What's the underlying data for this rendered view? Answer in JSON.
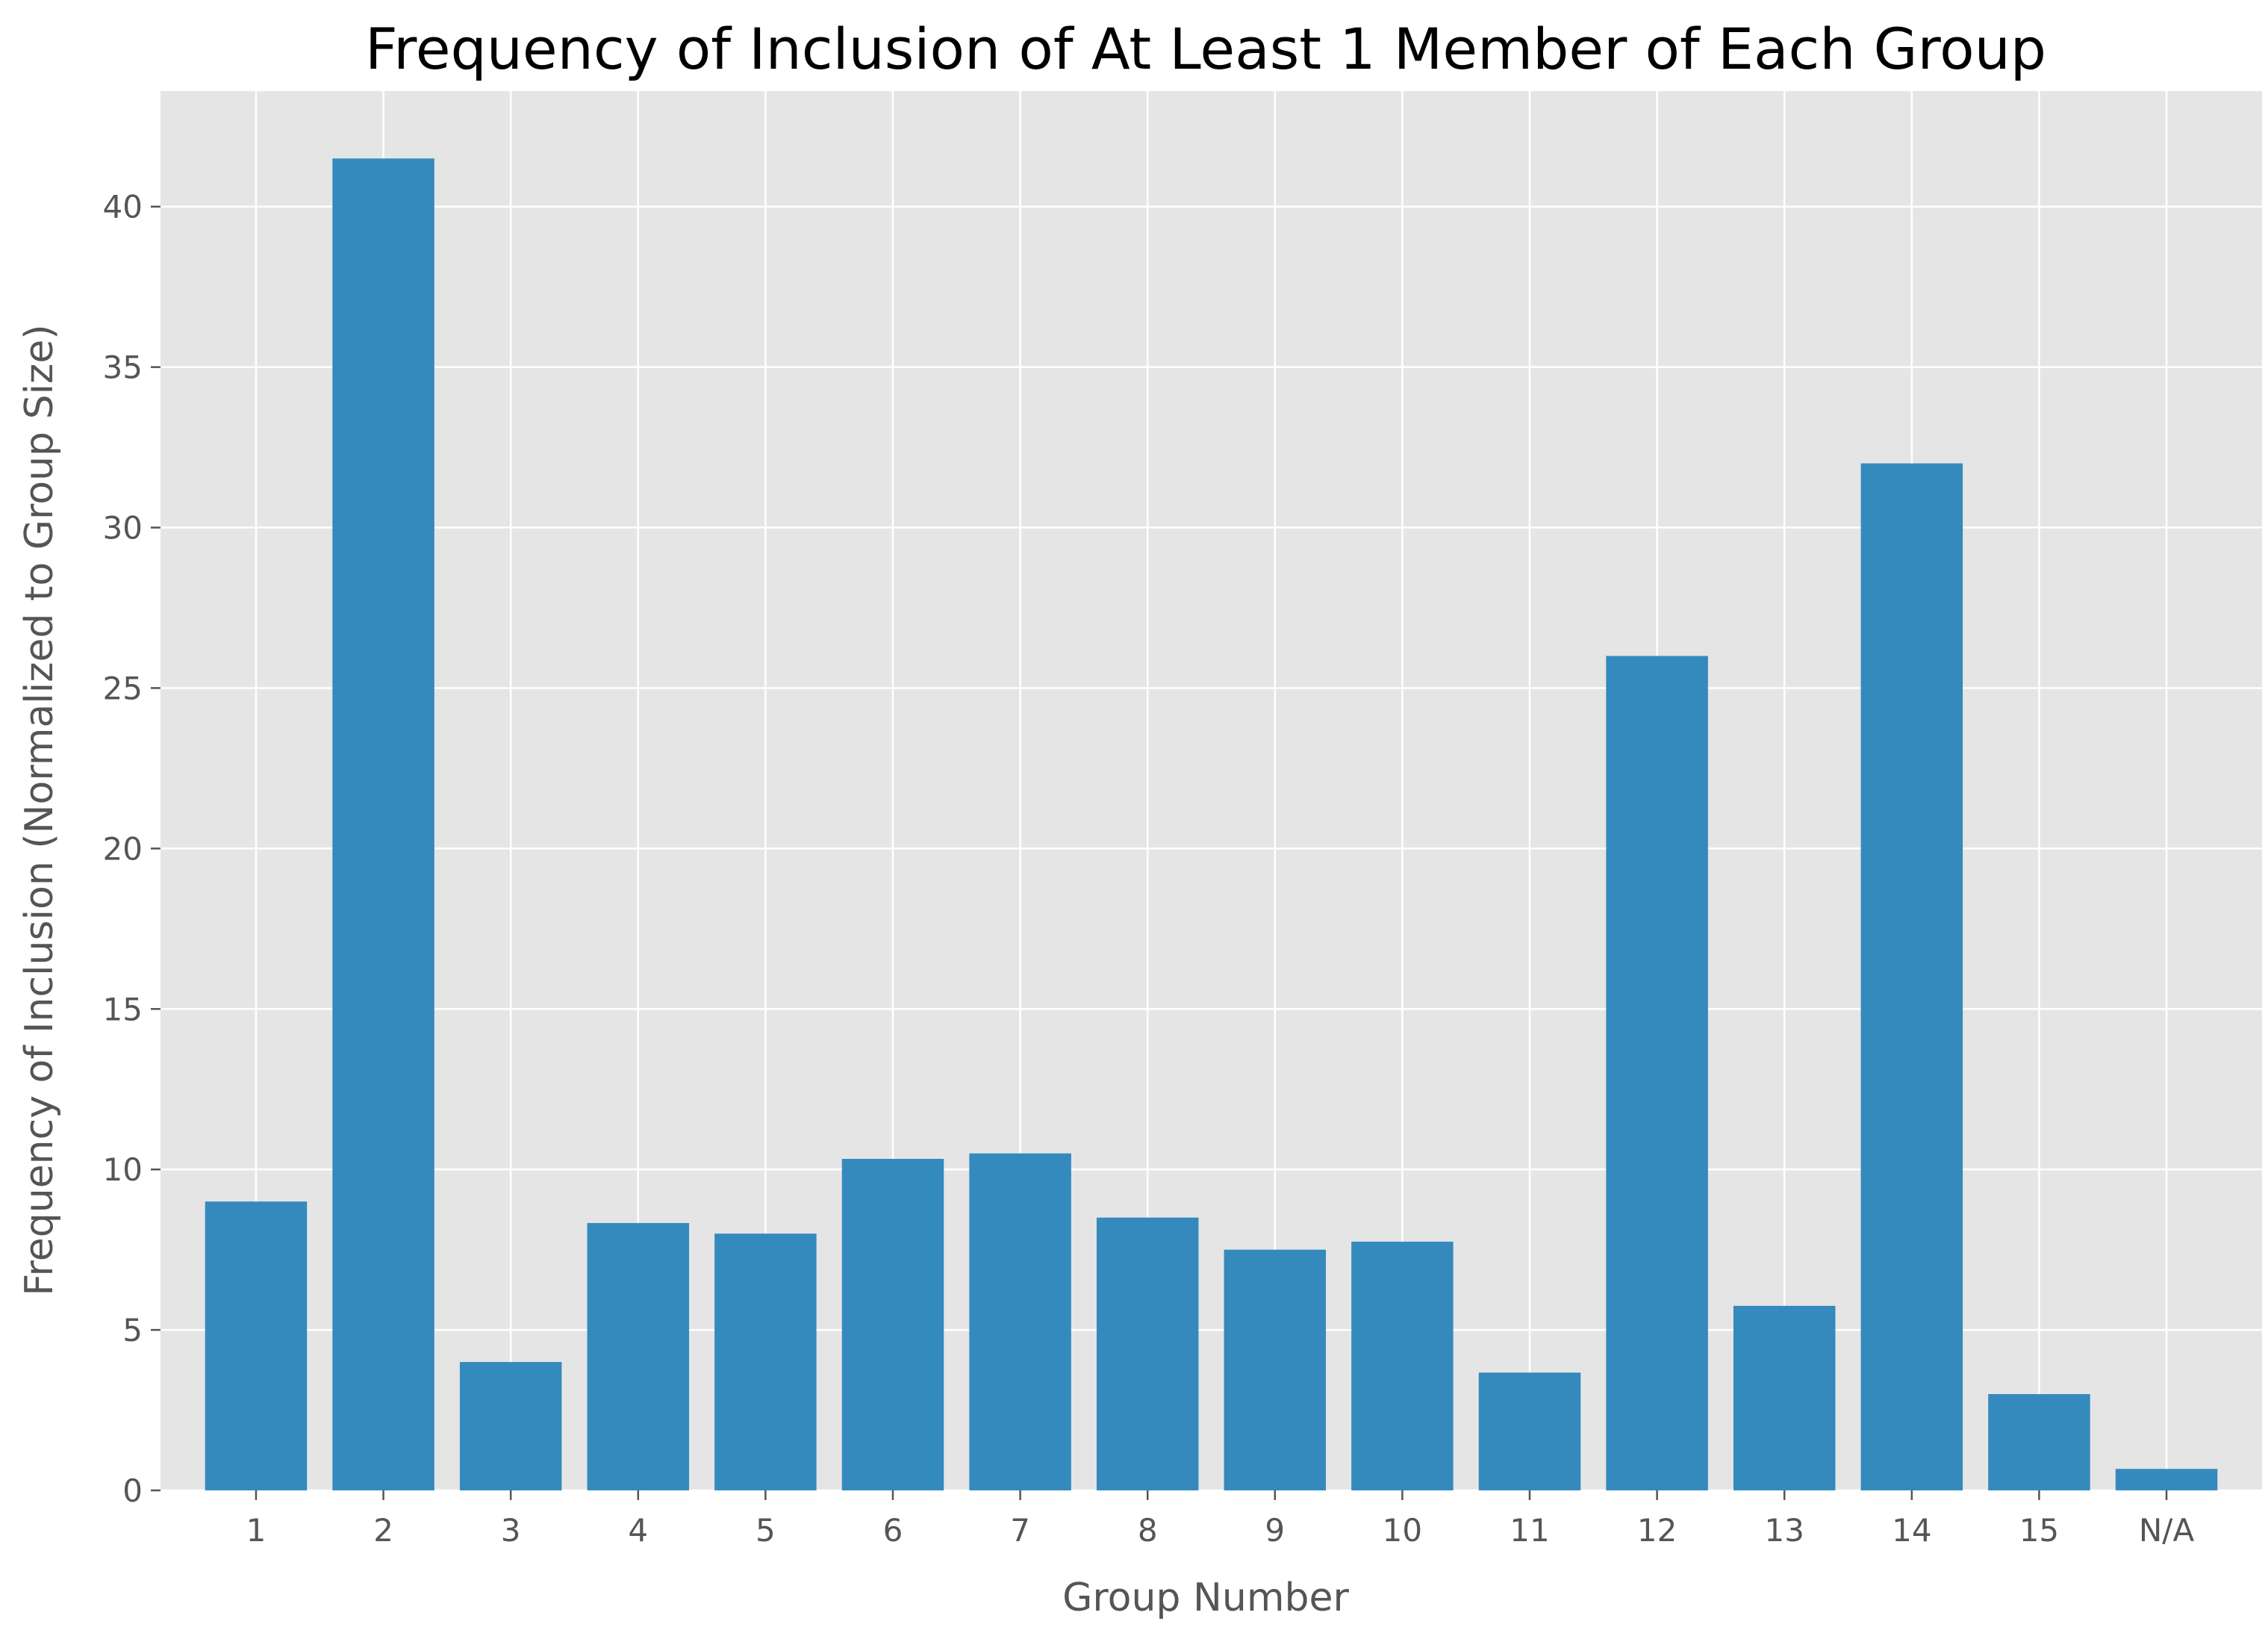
{
  "chart_data": {
    "type": "bar",
    "title": "Frequency of Inclusion of At Least 1 Member of Each Group",
    "xlabel": "Group Number",
    "ylabel": "Frequency of Inclusion (Normalized to Group Size)",
    "categories": [
      "1",
      "2",
      "3",
      "4",
      "5",
      "6",
      "7",
      "8",
      "9",
      "10",
      "11",
      "12",
      "13",
      "14",
      "15",
      "N/A"
    ],
    "values": [
      9.0,
      41.5,
      4.0,
      8.33,
      8.0,
      10.33,
      10.5,
      8.5,
      7.5,
      7.75,
      3.67,
      26.0,
      5.75,
      32.0,
      3.0,
      0.67
    ],
    "ylim": [
      0,
      43.6
    ],
    "yticks": [
      0,
      5,
      10,
      15,
      20,
      25,
      30,
      35,
      40
    ],
    "grid": true,
    "legend": "none",
    "colors": {
      "bar": "#348abd",
      "plot_background": "#e5e5e5",
      "grid": "#ffffff",
      "text": "#555555",
      "title": "#000000"
    }
  }
}
